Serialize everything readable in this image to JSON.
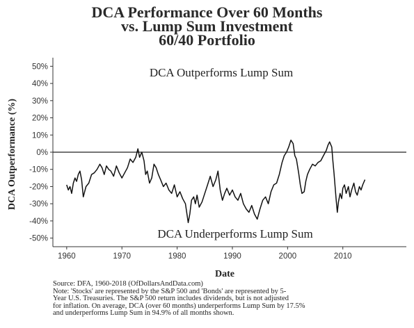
{
  "header": {
    "title_line1": "DCA Performance Over 60 Months",
    "title_line2": "vs. Lump Sum Investment",
    "title_line3": "60/40 Portfolio"
  },
  "footer": {
    "source": "Source:  DFA, 1960-2018 (OfDollarsAndData.com)",
    "note_line1": "Note: 'Stocks' are represented by the S&P 500 and 'Bonds' are represented by 5-",
    "note_line2": "Year U.S. Treasuries. The S&P 500 return includes dividends, but is not adjusted",
    "note_line3": "for inflation. On average, DCA (over 60 months) underperforms Lump Sum by 17.5%",
    "note_line4": "and underperforms Lump Sum in 94.9% of all months shown."
  },
  "chart_data": {
    "type": "line",
    "xlabel": "Date",
    "ylabel": "DCA Outperformance (%)",
    "xlim": [
      1957.5,
      2021.5
    ],
    "ylim": [
      -55,
      55
    ],
    "yticks": [
      50,
      40,
      30,
      20,
      10,
      0,
      -10,
      -20,
      -30,
      -40,
      -50
    ],
    "ytick_labels": [
      "50%",
      "40%",
      "30%",
      "20%",
      "10%",
      "0%",
      "-10%",
      "-20%",
      "-30%",
      "-40%",
      "-50%"
    ],
    "xticks": [
      1960,
      1970,
      1980,
      1990,
      2000,
      2010
    ],
    "xtick_labels": [
      "1960",
      "1970",
      "1980",
      "1990",
      "2000",
      "2010"
    ],
    "reference_line_y": 0,
    "annotations": {
      "top": "DCA Outperforms Lump Sum",
      "bottom": "DCA Underperforms Lump Sum"
    },
    "line_color": "#111111",
    "grid": false,
    "series": [
      {
        "x": [
          1960.0,
          1960.3,
          1960.6,
          1960.9,
          1961.2,
          1961.5,
          1961.8,
          1962.1,
          1962.4,
          1962.7,
          1963.0,
          1963.5,
          1964.0,
          1964.5,
          1965.0,
          1965.5,
          1966.0,
          1966.4,
          1966.8,
          1967.2,
          1967.6,
          1968.0,
          1968.5,
          1969.0,
          1969.5,
          1970.0,
          1970.5,
          1971.0,
          1971.5,
          1972.0,
          1972.5,
          1972.9,
          1973.2,
          1973.6,
          1974.0,
          1974.3,
          1974.6,
          1975.0,
          1975.4,
          1975.8,
          1976.2,
          1976.6,
          1977.0,
          1977.5,
          1978.0,
          1978.5,
          1979.0,
          1979.5,
          1980.0,
          1980.5,
          1981.0,
          1981.5,
          1982.0,
          1982.3,
          1982.6,
          1983.0,
          1983.3,
          1983.6,
          1984.0,
          1984.5,
          1985.0,
          1985.5,
          1986.0,
          1986.5,
          1987.0,
          1987.4,
          1987.8,
          1988.2,
          1988.6,
          1989.0,
          1989.5,
          1990.0,
          1990.5,
          1991.0,
          1991.5,
          1992.0,
          1992.5,
          1993.0,
          1993.5,
          1994.0,
          1994.5,
          1995.0,
          1995.5,
          1996.0,
          1996.5,
          1997.0,
          1997.5,
          1998.0,
          1998.5,
          1999.0,
          1999.4,
          1999.8,
          2000.2,
          2000.6,
          2001.0,
          2001.3,
          2001.6,
          2002.0,
          2002.3,
          2002.6,
          2003.0,
          2003.3,
          2003.6,
          2004.0,
          2004.5,
          2005.0,
          2005.5,
          2006.0,
          2006.5,
          2007.0,
          2007.3,
          2007.6,
          2008.0,
          2008.2,
          2008.4,
          2008.6,
          2008.8,
          2009.0,
          2009.2,
          2009.5,
          2009.8,
          2010.0,
          2010.3,
          2010.6,
          2011.0,
          2011.3,
          2011.6,
          2012.0,
          2012.3,
          2012.6,
          2013.0,
          2013.3,
          2013.6,
          2014.0
        ],
        "y": [
          -19,
          -22,
          -20,
          -24,
          -18,
          -15,
          -17,
          -13,
          -11,
          -16,
          -26,
          -20,
          -18,
          -13,
          -12,
          -10,
          -7,
          -9,
          -13,
          -8,
          -10,
          -11,
          -14,
          -8,
          -12,
          -15,
          -12,
          -9,
          -4,
          -6,
          -3,
          2,
          -3,
          0,
          -5,
          -13,
          -11,
          -18,
          -15,
          -7,
          -9,
          -13,
          -16,
          -20,
          -18,
          -22,
          -24,
          -19,
          -26,
          -23,
          -27,
          -30,
          -41,
          -36,
          -28,
          -26,
          -30,
          -25,
          -32,
          -29,
          -24,
          -19,
          -14,
          -20,
          -16,
          -11,
          -22,
          -28,
          -24,
          -21,
          -25,
          -22,
          -26,
          -28,
          -24,
          -30,
          -33,
          -35,
          -31,
          -36,
          -39,
          -33,
          -28,
          -26,
          -30,
          -23,
          -19,
          -18,
          -13,
          -6,
          -2,
          0,
          3,
          7,
          5,
          -2,
          -4,
          -12,
          -19,
          -24,
          -23,
          -17,
          -13,
          -10,
          -7,
          -8,
          -6,
          -5,
          -2,
          1,
          4,
          6,
          3,
          -5,
          -12,
          -20,
          -28,
          -35,
          -29,
          -24,
          -27,
          -21,
          -19,
          -24,
          -20,
          -26,
          -22,
          -18,
          -23,
          -25,
          -20,
          -22,
          -19,
          -16
        ]
      }
    ]
  }
}
